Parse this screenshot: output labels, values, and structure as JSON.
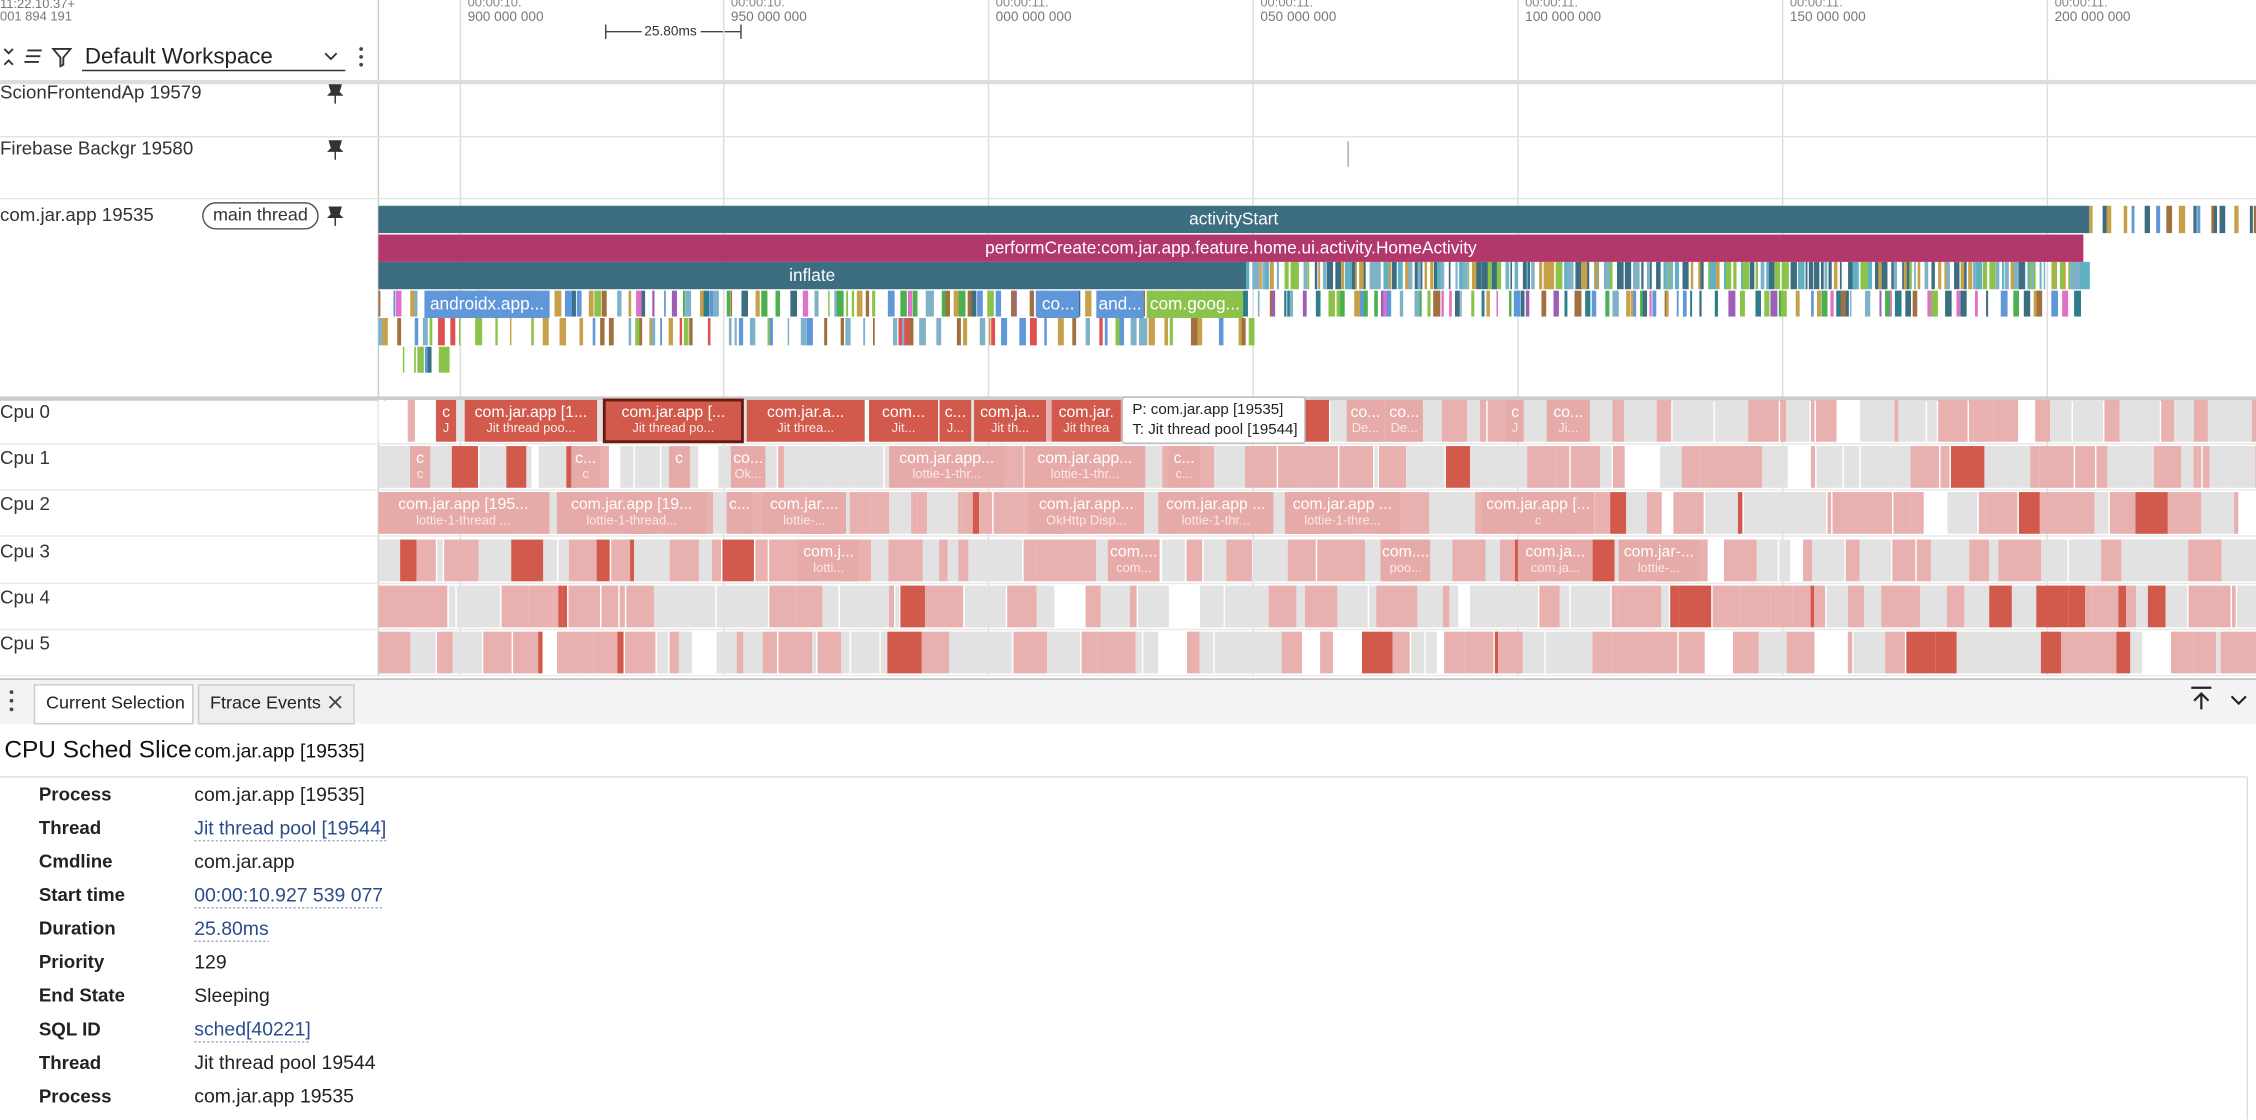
{
  "timeline": {
    "offset_top": "11:22.10.37+",
    "offset": "001 894 191",
    "measure": "25.80ms",
    "ticks": [
      {
        "upper": "00:00:10.",
        "lower": "900 000 000"
      },
      {
        "upper": "00:00:10.",
        "lower": "950 000 000"
      },
      {
        "upper": "00:00:11.",
        "lower": "000 000 000"
      },
      {
        "upper": "00:00:11.",
        "lower": "050 000 000"
      },
      {
        "upper": "00:00:11.",
        "lower": "100 000 000"
      },
      {
        "upper": "00:00:11.",
        "lower": "150 000 000"
      },
      {
        "upper": "00:00:11.",
        "lower": "200 000 000"
      }
    ]
  },
  "workspace": "Default Workspace",
  "tracks": [
    {
      "label": "ScionFrontendAp 19579"
    },
    {
      "label": "Firebase Backgr 19580"
    },
    {
      "label": "com.jar.app 19535",
      "chip": "main thread"
    }
  ],
  "main_slices": [
    "activityStart",
    "performCreate:com.jar.app.feature.home.ui.activity.HomeActivity",
    "inflate",
    "androidx.app...",
    "co...",
    "and...",
    "com.goog..."
  ],
  "cpus": [
    {
      "name": "Cpu 0",
      "slices": [
        {
          "title": "c",
          "sub": "J"
        },
        {
          "title": "com.jar.app [1...",
          "sub": "Jit thread poo..."
        },
        {
          "title": "com.jar.app [...",
          "sub": "Jit thread po..."
        },
        {
          "title": "com.jar.a...",
          "sub": "Jit threa..."
        },
        {
          "title": "com...",
          "sub": "Jit..."
        },
        {
          "title": "c...",
          "sub": "J..."
        },
        {
          "title": "com.ja...",
          "sub": "Jit th..."
        },
        {
          "title": "com.jar.",
          "sub": "Jit threa"
        },
        {
          "title": "co...",
          "sub": "De..."
        },
        {
          "title": "co...",
          "sub": "De..."
        },
        {
          "title": "c",
          "sub": "J"
        },
        {
          "title": "co...",
          "sub": "Ji..."
        }
      ]
    },
    {
      "name": "Cpu 1",
      "slices": [
        {
          "title": "c",
          "sub": "c"
        },
        {
          "title": "c...",
          "sub": "c"
        },
        {
          "title": "c"
        },
        {
          "title": "co...",
          "sub": "Ok..."
        },
        {
          "title": "com.jar.app...",
          "sub": "lottie-1-thr..."
        },
        {
          "title": "com.jar.app...",
          "sub": "lottie-1-thr..."
        },
        {
          "title": "c...",
          "sub": "c..."
        }
      ]
    },
    {
      "name": "Cpu 2",
      "slices": [
        {
          "title": "com.jar.app [195...",
          "sub": "lottie-1-thread ..."
        },
        {
          "title": "com.jar.app [19...",
          "sub": "lottie-1-thread..."
        },
        {
          "title": "c..."
        },
        {
          "title": "com.jar....",
          "sub": "lottie-..."
        },
        {
          "title": "com.jar.app...",
          "sub": "OkHttp Disp..."
        },
        {
          "title": "com.jar.app ...",
          "sub": "lottie-1-thr..."
        },
        {
          "title": "com.jar.app ...",
          "sub": "lottie-1-thre..."
        },
        {
          "title": "com.jar.app [...",
          "sub": "c"
        }
      ]
    },
    {
      "name": "Cpu 3",
      "slices": [
        {
          "title": "com.j...",
          "sub": "lotti..."
        },
        {
          "title": "com....",
          "sub": "com..."
        },
        {
          "title": "com....",
          "sub": "poo..."
        },
        {
          "title": "com.ja...",
          "sub": "com.ja..."
        },
        {
          "title": "com.jar-...",
          "sub": "lottie-..."
        }
      ]
    },
    {
      "name": "Cpu 4",
      "slices": []
    },
    {
      "name": "Cpu 5",
      "slices": []
    }
  ],
  "tooltip": [
    "P: com.jar.app [19535]",
    "T: Jit thread pool [19544]"
  ],
  "tabs": [
    "Current Selection",
    "Ftrace Events"
  ],
  "details": {
    "title": "CPU Sched Slice",
    "subtitle": "com.jar.app [19535]",
    "rows": [
      {
        "key": "Process",
        "value": "com.jar.app [19535]"
      },
      {
        "key": "Thread",
        "value": "Jit thread pool [19544]",
        "link": true
      },
      {
        "key": "Cmdline",
        "value": "com.jar.app"
      },
      {
        "key": "Start time",
        "value": "00:00:10.927 539 077",
        "link": true
      },
      {
        "key": "Duration",
        "value": "25.80ms",
        "link": true
      },
      {
        "key": "Priority",
        "value": "129"
      },
      {
        "key": "End State",
        "value": "Sleeping"
      },
      {
        "key": "SQL ID",
        "value": "sched[40221]",
        "link": true
      },
      {
        "key": "Thread",
        "value": "Jit thread pool 19544"
      },
      {
        "key": "Process",
        "value": "com.jar.app 19535"
      }
    ]
  }
}
